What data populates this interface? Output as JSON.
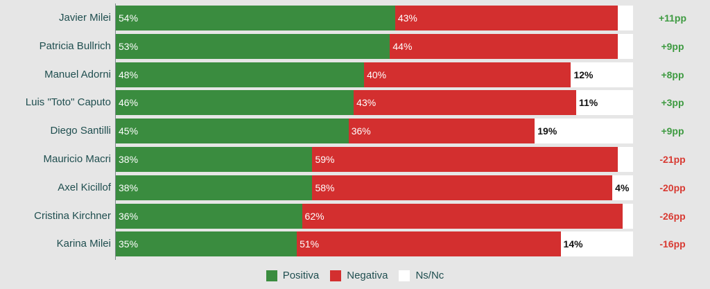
{
  "chart_data": {
    "type": "bar",
    "orientation": "horizontal",
    "stacked": true,
    "categories": [
      "Javier Milei",
      "Patricia Bullrich",
      "Manuel Adorni",
      "Luis \"Toto\" Caputo",
      "Diego Santilli",
      "Mauricio Macri",
      "Axel Kicillof",
      "Cristina Kirchner",
      "Karina Milei"
    ],
    "series": [
      {
        "name": "Positiva",
        "color": "#3a8c3f",
        "values": [
          54,
          53,
          48,
          46,
          45,
          38,
          38,
          36,
          35
        ],
        "labels": [
          "54%",
          "53%",
          "48%",
          "46%",
          "45%",
          "38%",
          "38%",
          "36%",
          "35%"
        ]
      },
      {
        "name": "Negativa",
        "color": "#d32f2f",
        "values": [
          43,
          44,
          40,
          43,
          36,
          59,
          58,
          62,
          51
        ],
        "labels": [
          "43%",
          "44%",
          "40%",
          "43%",
          "36%",
          "59%",
          "58%",
          "62%",
          "51%"
        ]
      },
      {
        "name": "Ns/Nc",
        "color": "#ffffff",
        "values": [
          3,
          3,
          12,
          11,
          19,
          3,
          4,
          2,
          14
        ],
        "labels": [
          "",
          "",
          "12%",
          "11%",
          "19%",
          "",
          "4%",
          "",
          "14%"
        ]
      }
    ],
    "net": [
      "+11pp",
      "+9pp",
      "+8pp",
      "+3pp",
      "+9pp",
      "-21pp",
      "-20pp",
      "-26pp",
      "-16pp"
    ],
    "net_colors": {
      "positive": "#3d9a40",
      "negative": "#d83a32"
    },
    "xlim": [
      0,
      100
    ],
    "legend_position": "bottom"
  }
}
